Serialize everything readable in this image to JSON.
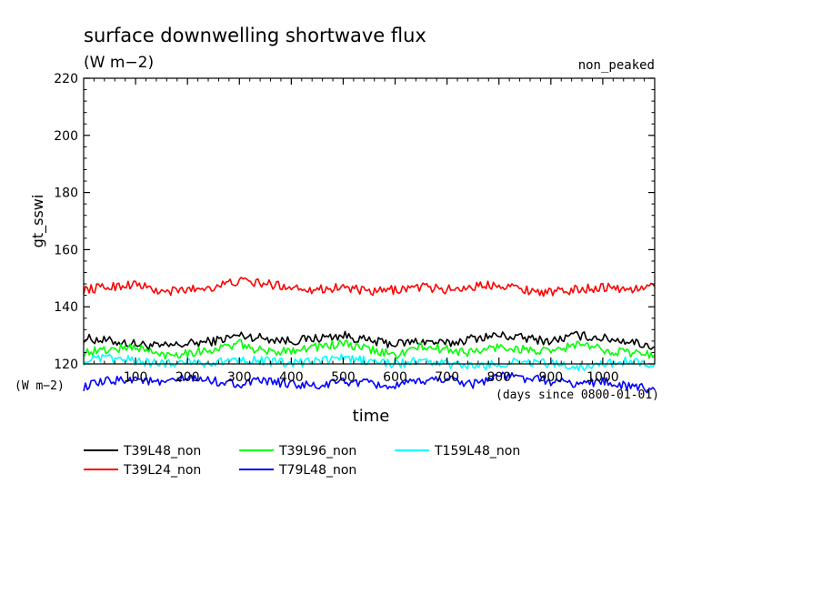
{
  "chart_data": {
    "type": "line",
    "title": "surface downwelling shortwave flux",
    "subtitle": "(W m−2)",
    "annotation": "non_peaked",
    "ylabel": "gt_sswi",
    "yunit_label": "(W m−2)",
    "xlabel": "time",
    "xunit_label": "(days since 0800-01-01)",
    "xlim": [
      0,
      1100
    ],
    "ylim": [
      120,
      220
    ],
    "xticks": [
      100,
      200,
      300,
      400,
      500,
      600,
      700,
      800,
      900,
      1000
    ],
    "xtick_labels": [
      "100",
      "200",
      "300",
      "400",
      "500",
      "600",
      "700",
      "800",
      "900",
      "1000"
    ],
    "yticks": [
      120,
      140,
      160,
      180,
      200,
      220
    ],
    "ytick_labels": [
      "120",
      "140",
      "160",
      "180",
      "200",
      "220"
    ],
    "grid": false,
    "legend_position": "bottom",
    "series": [
      {
        "name": "T39L48_non",
        "color": "#000000",
        "x": [
          0,
          50,
          100,
          150,
          200,
          250,
          300,
          350,
          400,
          450,
          500,
          550,
          600,
          650,
          700,
          750,
          800,
          850,
          900,
          950,
          1000,
          1050,
          1100
        ],
        "values": [
          129,
          128,
          127,
          126,
          127,
          128,
          130,
          129,
          128,
          129,
          130,
          128,
          127,
          128,
          127,
          129,
          130,
          129,
          128,
          130,
          129,
          128,
          126
        ]
      },
      {
        "name": "T39L24_non",
        "color": "#ff0000",
        "x": [
          0,
          50,
          100,
          150,
          200,
          250,
          300,
          350,
          400,
          450,
          500,
          550,
          600,
          650,
          700,
          750,
          800,
          850,
          900,
          950,
          1000,
          1050,
          1100
        ],
        "values": [
          146,
          147,
          148,
          145,
          146,
          147,
          149,
          148,
          147,
          146,
          147,
          145,
          146,
          147,
          146,
          147,
          148,
          146,
          145,
          146,
          147,
          146,
          147
        ]
      },
      {
        "name": "T39L96_non",
        "color": "#00ff00",
        "x": [
          0,
          50,
          100,
          150,
          200,
          250,
          300,
          350,
          400,
          450,
          500,
          550,
          600,
          650,
          700,
          750,
          800,
          850,
          900,
          950,
          1000,
          1050,
          1100
        ],
        "values": [
          124,
          125,
          126,
          123,
          124,
          125,
          127,
          124,
          125,
          126,
          127,
          125,
          123,
          126,
          125,
          124,
          126,
          125,
          124,
          127,
          125,
          124,
          123
        ]
      },
      {
        "name": "T79L48_non",
        "color": "#0000ff",
        "x": [
          0,
          50,
          100,
          150,
          200,
          250,
          300,
          350,
          400,
          450,
          500,
          550,
          600,
          650,
          700,
          750,
          800,
          850,
          900,
          950,
          1000,
          1050,
          1100
        ],
        "values": [
          112,
          114,
          115,
          113,
          115,
          114,
          113,
          114,
          113,
          112,
          114,
          113,
          112,
          114,
          115,
          113,
          116,
          115,
          114,
          113,
          114,
          112,
          111
        ]
      },
      {
        "name": "T159L48_non",
        "color": "#00ffff",
        "x": [
          0,
          50,
          100,
          150,
          200,
          250,
          300,
          350,
          400,
          450,
          500,
          550,
          600,
          650,
          700,
          750,
          800,
          850,
          900,
          950,
          1000,
          1050,
          1100
        ],
        "values": [
          121,
          122,
          121,
          120,
          121,
          120,
          122,
          121,
          120,
          121,
          122,
          121,
          120,
          121,
          120,
          119,
          120,
          121,
          120,
          119,
          120,
          121,
          120
        ]
      }
    ]
  }
}
